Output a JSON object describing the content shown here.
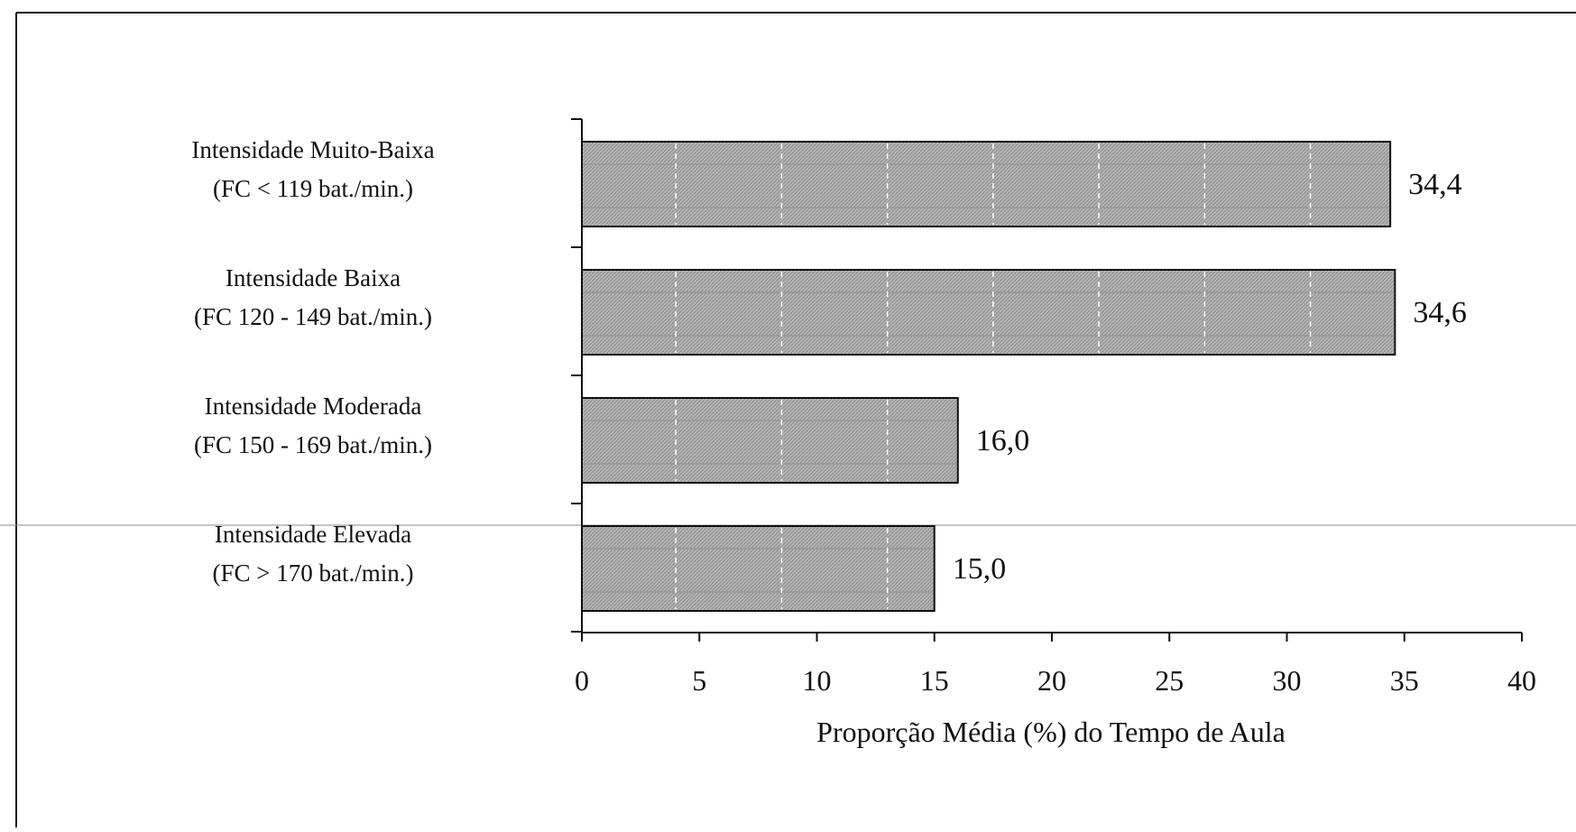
{
  "chart_data": {
    "type": "bar",
    "orientation": "horizontal",
    "categories": [
      [
        "Intensidade Muito-Baixa",
        "(FC < 119 bat./min.)"
      ],
      [
        "Intensidade Baixa",
        "(FC 120 - 149 bat./min.)"
      ],
      [
        "Intensidade Moderada",
        "(FC 150 - 169 bat./min.)"
      ],
      [
        "Intensidade Elevada",
        "(FC > 170 bat./min.)"
      ]
    ],
    "values": [
      34.4,
      34.6,
      16.0,
      15.0
    ],
    "value_labels": [
      "34,4",
      "34,6",
      "16,0",
      "15,0"
    ],
    "xlabel": "Proporção Média (%) do Tempo de Aula",
    "xlim": [
      0,
      40
    ],
    "xticks": [
      "0",
      "5",
      "10",
      "15",
      "20",
      "25",
      "30",
      "35",
      "40"
    ],
    "bar_color": "#b3b3b3",
    "bar_pattern": "hatched-gray",
    "grid": "dashed-white-inside-bars",
    "legend": "none"
  }
}
